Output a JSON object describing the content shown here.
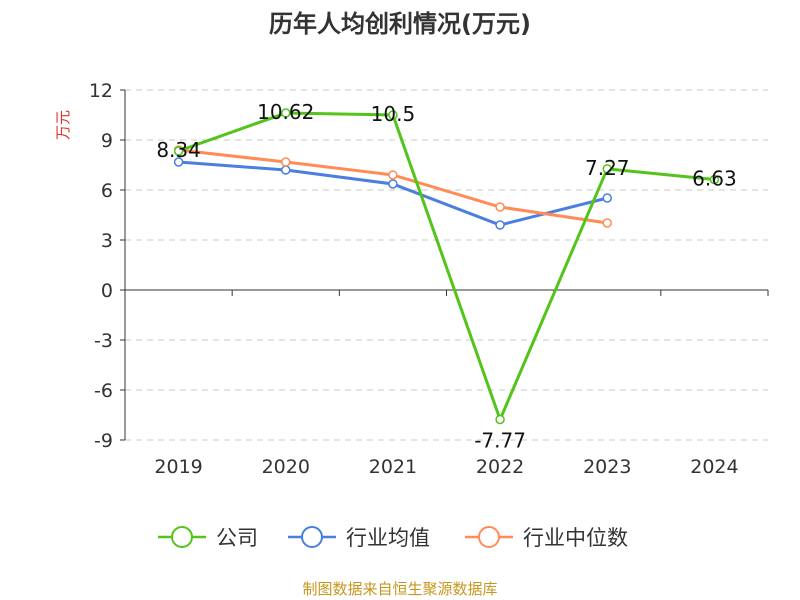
{
  "chart_data": {
    "type": "line",
    "title": "历年人均创利情况(万元)",
    "ylabel": "万元",
    "xlabel": "",
    "categories": [
      "2019",
      "2020",
      "2021",
      "2022",
      "2023",
      "2024"
    ],
    "ylim": [
      -9,
      12
    ],
    "yticks": [
      12,
      9,
      6,
      3,
      0,
      -3,
      -6,
      -9
    ],
    "grid": true,
    "legend_position": "bottom",
    "series": [
      {
        "name": "公司",
        "color": "#52c41a",
        "values": [
          8.34,
          10.62,
          10.5,
          -7.77,
          7.27,
          6.63
        ],
        "labels": [
          "8.34",
          "10.62",
          "10.5",
          "-7.77",
          "7.27",
          "6.63"
        ]
      },
      {
        "name": "行业均值",
        "color": "#4a7fe0",
        "values": [
          7.68,
          7.2,
          6.36,
          3.9,
          5.52,
          null
        ]
      },
      {
        "name": "行业中位数",
        "color": "#ff8c55",
        "values": [
          8.4,
          7.68,
          6.9,
          4.98,
          4.02,
          null
        ]
      }
    ],
    "source": "制图数据来自恒生聚源数据库"
  }
}
